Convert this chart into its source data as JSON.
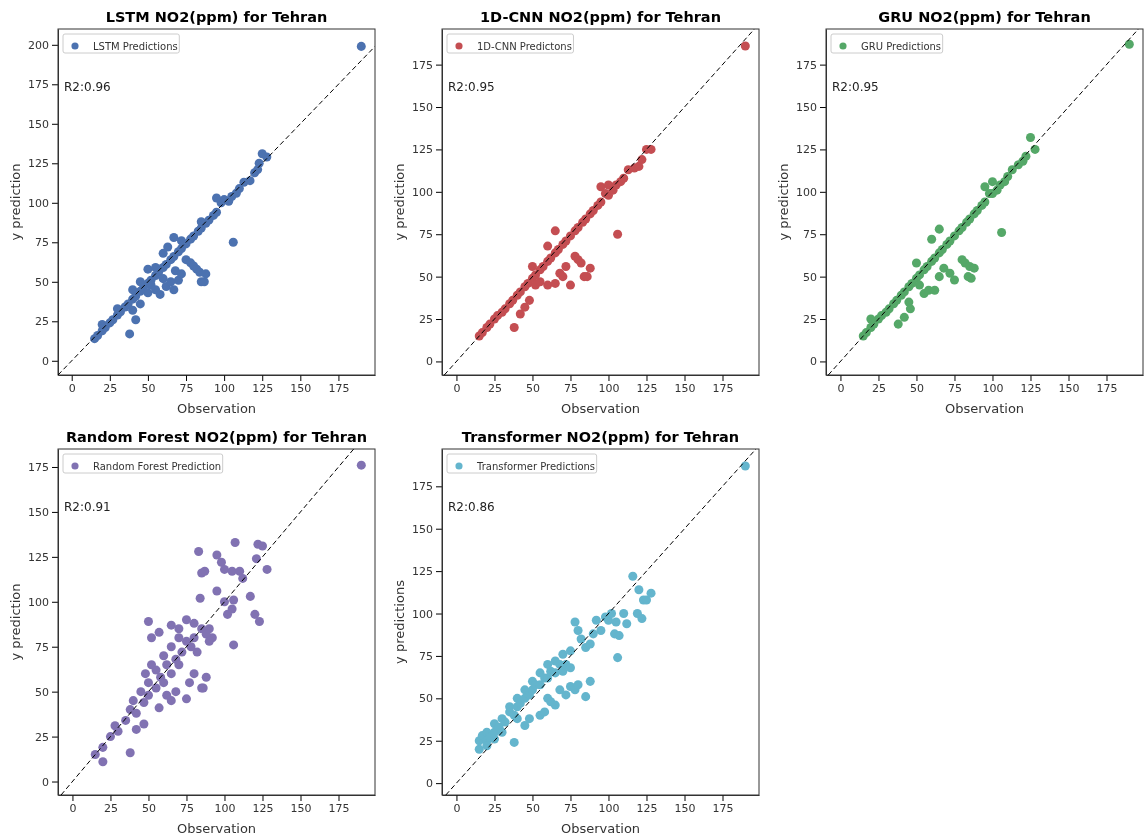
{
  "chart_data": [
    {
      "type": "scatter",
      "title": "LSTM NO2(ppm) for Tehran",
      "xlabel": "Observation",
      "ylabel": "y prediction",
      "xlim": [
        -9,
        199
      ],
      "ylim": [
        -9,
        210
      ],
      "xticks": [
        0,
        25,
        50,
        75,
        100,
        125,
        150,
        175
      ],
      "yticks": [
        0,
        25,
        50,
        75,
        100,
        125,
        150,
        175,
        200
      ],
      "legend": "top left",
      "annotations": [
        "R2:0.96"
      ],
      "series": [
        {
          "name": "LSTM Predictions",
          "color": "#4c72b0",
          "marker": "circle",
          "x": [
            15,
            17,
            20,
            22,
            25,
            27,
            30,
            32,
            35,
            37,
            40,
            42,
            45,
            47,
            50,
            52,
            55,
            57,
            60,
            62,
            65,
            67,
            70,
            72,
            75,
            78,
            80,
            83,
            85,
            88,
            90,
            93,
            95,
            98,
            100,
            103,
            105,
            108,
            110,
            113,
            117,
            120,
            122,
            123,
            125,
            128,
            20,
            30,
            40,
            45,
            50,
            55,
            60,
            63,
            67,
            72,
            85,
            95,
            38,
            42,
            45,
            40,
            50,
            52,
            55,
            58,
            60,
            62,
            65,
            67,
            68,
            70,
            72,
            75,
            78,
            80,
            82,
            84,
            85,
            87,
            88,
            106,
            190
          ],
          "values": [
            14,
            16,
            19,
            21,
            24,
            26,
            29,
            31,
            34,
            36,
            39,
            41,
            44,
            46,
            49,
            51,
            54,
            56,
            59,
            61,
            64,
            66,
            69,
            71,
            74,
            77,
            79,
            82,
            84,
            87,
            89,
            92,
            94,
            100,
            102,
            101,
            104,
            106,
            109,
            113,
            114,
            119,
            121,
            125,
            131,
            129,
            23,
            33,
            45,
            50,
            58,
            59,
            68,
            72,
            78,
            76,
            88,
            103,
            17,
            26,
            36,
            32,
            43,
            48,
            45,
            42,
            52,
            47,
            50,
            45,
            57,
            51,
            55,
            64,
            62,
            60,
            58,
            56,
            50,
            50,
            55,
            75,
            199
          ]
        },
        {
          "type": "line",
          "color": "#000000",
          "marker": "none",
          "line_style": "dashed",
          "x": [
            -9,
            199
          ],
          "values": [
            -9,
            199
          ]
        }
      ]
    },
    {
      "type": "scatter",
      "title": "1D-CNN NO2(ppm) for Tehran",
      "xlabel": "Observation",
      "ylabel": "y prediction",
      "xlim": [
        -9.5,
        199
      ],
      "ylim": [
        -8,
        196
      ],
      "xticks": [
        0,
        25,
        50,
        75,
        100,
        125,
        150,
        175
      ],
      "yticks": [
        0,
        25,
        50,
        75,
        100,
        125,
        150,
        175
      ],
      "legend": "top left",
      "annotations": [
        "R2:0.95"
      ],
      "series": [
        {
          "name": "1D-CNN Predictons",
          "color": "#c44e52",
          "marker": "circle",
          "x": [
            15,
            17,
            20,
            22,
            25,
            27,
            30,
            32,
            35,
            37,
            40,
            42,
            45,
            47,
            50,
            52,
            55,
            57,
            60,
            62,
            65,
            67,
            70,
            72,
            75,
            78,
            80,
            83,
            85,
            88,
            90,
            93,
            95,
            98,
            100,
            103,
            105,
            108,
            110,
            113,
            117,
            120,
            122,
            125,
            128,
            190,
            106,
            38,
            42,
            45,
            48,
            52,
            55,
            60,
            65,
            68,
            70,
            72,
            75,
            78,
            80,
            82,
            84,
            86,
            88,
            50,
            60,
            65,
            95,
            100
          ],
          "values": [
            15,
            17,
            20,
            22,
            25,
            27,
            29,
            31,
            34,
            36,
            39,
            41,
            44,
            46,
            49,
            51,
            54,
            56,
            59,
            61,
            64,
            66,
            69,
            71,
            74,
            77,
            79,
            82,
            84,
            87,
            89,
            92,
            94,
            99,
            98,
            101,
            104,
            106,
            108,
            113,
            114,
            115,
            119,
            125,
            125,
            186,
            75,
            20,
            28,
            32,
            36,
            45,
            47,
            45,
            46,
            52,
            50,
            56,
            45,
            62,
            60,
            58,
            50,
            50,
            55,
            56,
            68,
            77,
            103,
            104
          ]
        },
        {
          "type": "line",
          "color": "#000000",
          "marker": "none",
          "line_style": "dashed",
          "x": [
            -8,
            196
          ],
          "values": [
            -8,
            196
          ]
        }
      ]
    },
    {
      "type": "scatter",
      "title": "GRU NO2(ppm) for Tehran",
      "xlabel": "Observation",
      "ylabel": "y prediction",
      "xlim": [
        -9.5,
        199
      ],
      "ylim": [
        -8,
        196
      ],
      "xticks": [
        0,
        25,
        50,
        75,
        100,
        125,
        150,
        175
      ],
      "yticks": [
        0,
        25,
        50,
        75,
        100,
        125,
        150,
        175
      ],
      "legend": "top left",
      "annotations": [
        "R2:0.95"
      ],
      "series": [
        {
          "name": "GRU Predictions",
          "color": "#55a868",
          "marker": "circle",
          "x": [
            15,
            17,
            20,
            22,
            25,
            27,
            30,
            32,
            35,
            37,
            40,
            42,
            45,
            47,
            50,
            52,
            55,
            57,
            60,
            62,
            65,
            67,
            70,
            72,
            75,
            78,
            80,
            83,
            85,
            88,
            90,
            93,
            95,
            98,
            100,
            103,
            105,
            108,
            110,
            113,
            117,
            120,
            122,
            125,
            128,
            190,
            106,
            38,
            42,
            45,
            46,
            52,
            55,
            58,
            62,
            65,
            68,
            72,
            75,
            80,
            82,
            84,
            85,
            88,
            86,
            20,
            50,
            60,
            65,
            95,
            100
          ],
          "values": [
            15,
            17,
            20,
            22,
            25,
            27,
            29,
            31,
            34,
            36,
            39,
            41,
            44,
            46,
            49,
            51,
            54,
            56,
            59,
            61,
            64,
            66,
            69,
            71,
            74,
            77,
            79,
            82,
            84,
            87,
            89,
            92,
            94,
            99,
            99,
            101,
            104,
            106,
            109,
            113,
            116,
            118,
            121,
            132,
            125,
            187,
            76,
            22,
            26,
            35,
            31,
            45,
            40,
            42,
            42,
            50,
            55,
            52,
            48,
            60,
            58,
            50,
            56,
            55,
            49,
            25,
            58,
            72,
            78,
            103,
            106
          ]
        },
        {
          "type": "line",
          "color": "#000000",
          "marker": "none",
          "line_style": "dashed",
          "x": [
            -8,
            196
          ],
          "values": [
            -8,
            196
          ]
        }
      ]
    },
    {
      "type": "scatter",
      "title": "Random Forest NO2(ppm) for Tehran",
      "xlabel": "Observation",
      "ylabel": "y prediction",
      "xlim": [
        -9.5,
        199
      ],
      "ylim": [
        -7.5,
        185
      ],
      "xticks": [
        0,
        25,
        50,
        75,
        100,
        125,
        150,
        175
      ],
      "yticks": [
        0,
        25,
        50,
        75,
        100,
        125,
        150,
        175
      ],
      "legend": "top left",
      "annotations": [
        "R2:0.91"
      ],
      "series": [
        {
          "name": "Random Forest Prediction",
          "color": "#8172b2",
          "marker": "circle",
          "x": [
            190,
            83,
            85,
            87,
            95,
            98,
            100,
            105,
            107,
            110,
            112,
            117,
            120,
            121,
            122,
            123,
            125,
            128,
            100,
            102,
            106,
            105,
            106,
            95,
            84,
            50,
            52,
            57,
            65,
            70,
            75,
            80,
            90,
            92,
            38,
            20,
            42,
            47,
            57,
            65,
            75,
            80,
            85,
            88,
            86,
            77,
            68,
            62,
            15,
            20,
            25,
            28,
            30,
            35,
            38,
            40,
            42,
            45,
            47,
            48,
            50,
            50,
            52,
            55,
            55,
            58,
            60,
            60,
            62,
            65,
            65,
            68,
            70,
            70,
            72,
            75,
            78,
            80,
            82,
            85,
            88,
            90
          ],
          "values": [
            176,
            128,
            116,
            117,
            126,
            122,
            118,
            117,
            133,
            117,
            113,
            103,
            93,
            124,
            132,
            89,
            131,
            118,
            100,
            93,
            101,
            96,
            76,
            106,
            102,
            89,
            80,
            83,
            87,
            85,
            90,
            88,
            85,
            80,
            16,
            11,
            29,
            32,
            41,
            45,
            46,
            60,
            52,
            58,
            52,
            55,
            50,
            48,
            15,
            19,
            25,
            31,
            28,
            34,
            40,
            45,
            38,
            50,
            44,
            60,
            55,
            48,
            65,
            62,
            52,
            58,
            70,
            55,
            65,
            75,
            60,
            68,
            80,
            65,
            72,
            78,
            75,
            80,
            72,
            85,
            82,
            78
          ]
        },
        {
          "type": "line",
          "color": "#000000",
          "marker": "none",
          "line_style": "dashed",
          "x": [
            -7.5,
            185
          ],
          "values": [
            -7.5,
            185
          ]
        }
      ]
    },
    {
      "type": "scatter",
      "title": "Transformer NO2(ppm) for Tehran",
      "xlabel": "Observation",
      "ylabel": "y predictions",
      "xlim": [
        -9.5,
        199
      ],
      "ylim": [
        -7,
        197
      ],
      "xticks": [
        0,
        25,
        50,
        75,
        100,
        125,
        150,
        175
      ],
      "yticks": [
        0,
        25,
        50,
        75,
        100,
        125,
        150,
        175
      ],
      "legend": "top left",
      "annotations": [
        "R2:0.86"
      ],
      "series": [
        {
          "name": "Transformer Predictions",
          "color": "#64b5cd",
          "marker": "circle",
          "x": [
            15,
            15,
            17,
            20,
            20,
            22,
            25,
            25,
            28,
            30,
            32,
            35,
            35,
            38,
            40,
            40,
            42,
            45,
            45,
            48,
            50,
            50,
            52,
            55,
            55,
            58,
            60,
            60,
            62,
            65,
            65,
            68,
            70,
            70,
            72,
            75,
            75,
            78,
            80,
            82,
            85,
            88,
            90,
            92,
            95,
            98,
            100,
            102,
            104,
            105,
            107,
            106,
            110,
            112,
            116,
            119,
            120,
            122,
            123,
            125,
            128,
            190,
            38,
            40,
            45,
            48,
            55,
            58,
            60,
            62,
            65,
            68,
            72,
            75,
            78,
            80,
            85,
            88,
            30,
            25,
            20
          ],
          "values": [
            20,
            25,
            28,
            25,
            30,
            27,
            30,
            35,
            33,
            38,
            36,
            42,
            45,
            40,
            50,
            45,
            47,
            55,
            50,
            52,
            60,
            55,
            58,
            65,
            58,
            62,
            70,
            62,
            66,
            72,
            65,
            70,
            76,
            66,
            70,
            78,
            68,
            95,
            90,
            85,
            80,
            82,
            88,
            96,
            90,
            98,
            96,
            100,
            88,
            95,
            87,
            74,
            100,
            94,
            122,
            100,
            114,
            97,
            108,
            108,
            112,
            187,
            24,
            38,
            34,
            38,
            40,
            42,
            50,
            48,
            46,
            55,
            52,
            57,
            55,
            58,
            51,
            60,
            30,
            26,
            22
          ]
        },
        {
          "type": "line",
          "color": "#000000",
          "marker": "none",
          "line_style": "dashed",
          "x": [
            -7,
            197
          ],
          "values": [
            -7,
            197
          ]
        }
      ]
    }
  ]
}
